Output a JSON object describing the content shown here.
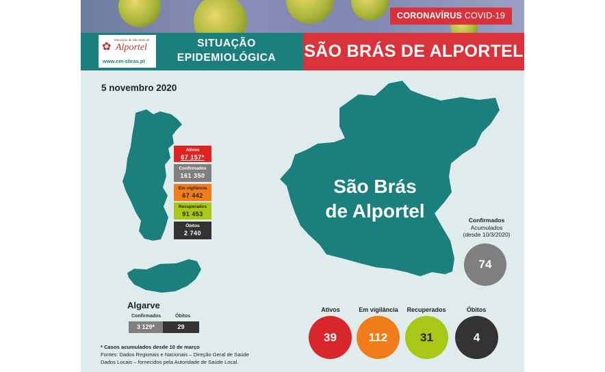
{
  "banner": {
    "tag_bold": "CORONAVÍRUS",
    "tag_light": "COVID-19"
  },
  "header": {
    "logo_small": "Município de São Brás de",
    "logo_name": "Alportel",
    "logo_url": "www.cm-sbras.pt",
    "title_line1": "SITUAÇÃO",
    "title_line2": "EPIDEMIOLÓGICA",
    "municipality": "SÃO BRÁS DE ALPORTEL"
  },
  "date": "5 novembro 2020",
  "portugal": [
    {
      "label": "Ativos",
      "value": "67 157*",
      "color": "#e0231f"
    },
    {
      "label": "Confirmados",
      "value": "161 350",
      "color": "#7f7f7f"
    },
    {
      "label": "Em vigilância",
      "value": "67 442",
      "color": "#f07d1a"
    },
    {
      "label": "Recuperados",
      "value": "91 453",
      "color": "#a8c716"
    },
    {
      "label": "Óbitos",
      "value": "2 740",
      "color": "#333333"
    }
  ],
  "algarve": {
    "title": "Algarve",
    "confirmados_label": "Confirmados",
    "confirmados_value": "3 129*",
    "obitos_label": "Óbitos",
    "obitos_value": "29"
  },
  "notes": {
    "line1": "*  Casos acumulados  desde 10 de março",
    "line2": "Fontes:  Dados Regionais e Nacionais – Direção Geral de Saúde",
    "line3": "Dados Locais – fornecidos pela Autoridade de Saúde Local."
  },
  "local": {
    "map_label_line1": "São Brás",
    "map_label_line2": "de Alportel",
    "acc_line1": "Confirmados",
    "acc_line2": "Acumulados",
    "acc_line3": "(desde 10/3/2020)",
    "acc_value": "74",
    "stats": [
      {
        "label": "Ativos",
        "value": "39",
        "color": "#d9262a"
      },
      {
        "label": "Em vigilância",
        "value": "112",
        "color": "#f07d1a"
      },
      {
        "label": "Recuperados",
        "value": "31",
        "color": "#a8c716"
      },
      {
        "label": "Óbitos",
        "value": "4",
        "color": "#333333"
      }
    ]
  },
  "colors": {
    "teal": "#1a7f7d",
    "red": "#d9323b",
    "background": "#dfeceb"
  }
}
